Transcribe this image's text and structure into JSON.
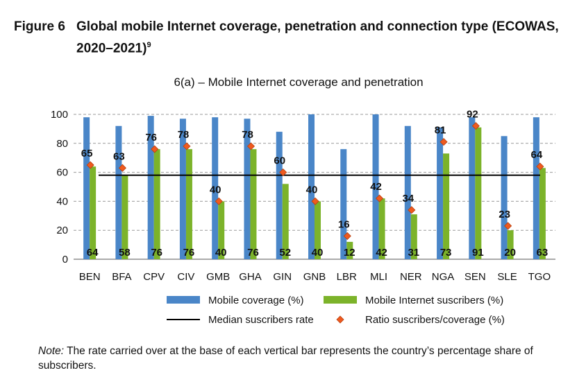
{
  "figure": {
    "number": "Figure 6",
    "title": "Global mobile Internet coverage, penetration and connection type (ECOWAS, 2020–2021)",
    "footnote_ref": "9"
  },
  "note": {
    "label": "Note:",
    "text": "The rate carried over at the base of each vertical bar represents the country’s percentage share of subscribers."
  },
  "chart_data": {
    "type": "bar",
    "title": "6(a) – Mobile Internet coverage and penetration",
    "xlabel": "",
    "ylabel": "",
    "ylim": [
      0,
      100
    ],
    "yticks": [
      0,
      20,
      40,
      60,
      80,
      100
    ],
    "grid": "dashed horizontal",
    "categories": [
      "BEN",
      "BFA",
      "CPV",
      "CIV",
      "GMB",
      "GHA",
      "GIN",
      "GNB",
      "LBR",
      "MLI",
      "NER",
      "NGA",
      "SEN",
      "SLE",
      "TGO"
    ],
    "series": [
      {
        "name": "Mobile coverage (%)",
        "type": "bar",
        "color": "#4a86c8",
        "values": [
          98,
          92,
          99,
          97,
          98,
          97,
          88,
          100,
          76,
          100,
          92,
          91,
          98,
          85,
          98
        ]
      },
      {
        "name": "Mobile Internet suscribers (%)",
        "type": "bar",
        "color": "#7cb32a",
        "values": [
          64,
          58,
          76,
          76,
          40,
          76,
          52,
          40,
          12,
          42,
          31,
          73,
          91,
          20,
          63
        ],
        "labels": [
          "64",
          "58",
          "76",
          "76",
          "40",
          "76",
          "52",
          "40",
          "12",
          "42",
          "31",
          "73",
          "91",
          "20",
          "63"
        ]
      },
      {
        "name": "Ratio suscribers/coverage (%)",
        "type": "scatter",
        "color": "#ef5a1f",
        "values": [
          65,
          63,
          76,
          78,
          40,
          78,
          60,
          40,
          16,
          42,
          34,
          81,
          92,
          23,
          64
        ],
        "labels": [
          "65",
          "63",
          "76",
          "78",
          "40",
          "78",
          "60",
          "40",
          "16",
          "42",
          "34",
          "81",
          "92",
          "23",
          "64"
        ]
      }
    ],
    "median_line": {
      "name": "Median suscribers rate",
      "value": 58,
      "color": "#000000"
    },
    "legend": {
      "position": "bottom"
    }
  }
}
